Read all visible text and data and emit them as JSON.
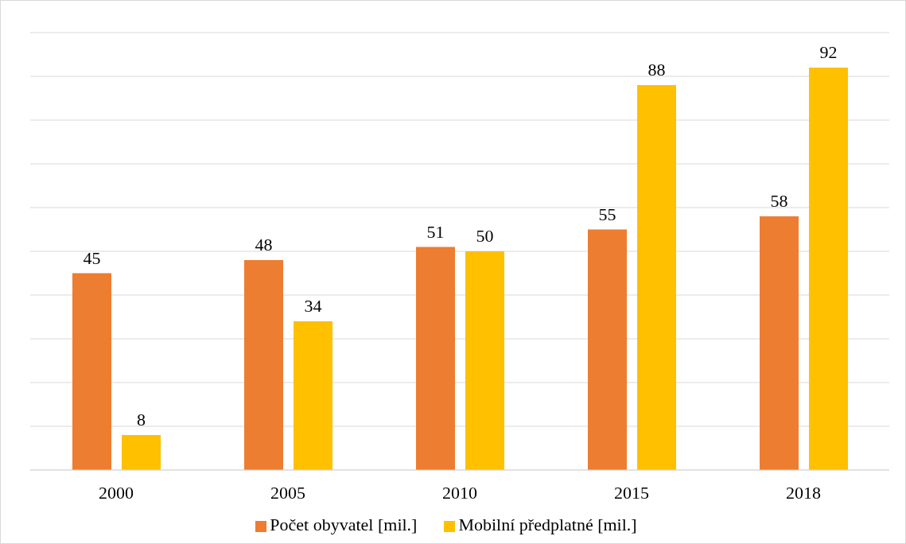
{
  "chart_data": {
    "type": "bar",
    "categories": [
      "2000",
      "2005",
      "2010",
      "2015",
      "2018"
    ],
    "series": [
      {
        "name": "Počet obyvatel [mil.]",
        "color": "#ed7d31",
        "values": [
          45,
          48,
          51,
          55,
          58
        ]
      },
      {
        "name": "Mobilní předplatné [mil.]",
        "color": "#ffc000",
        "values": [
          8,
          34,
          50,
          88,
          92
        ]
      }
    ],
    "ylim": [
      0,
      100
    ],
    "grid": "y",
    "legend": "bottom",
    "tick_labels": "x",
    "data_labels": true
  }
}
